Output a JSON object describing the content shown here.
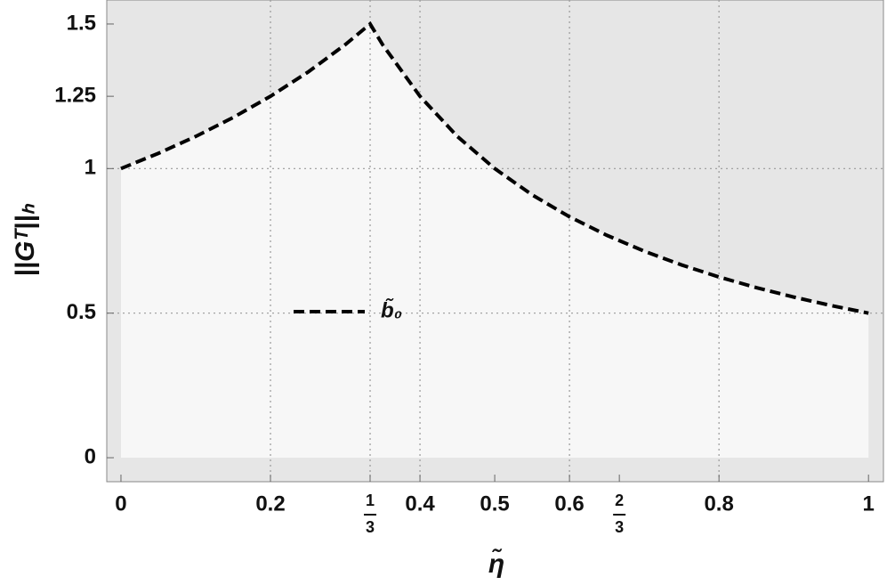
{
  "chart_data": {
    "type": "line",
    "x_label": "η̃",
    "y_label": "||Gᵀ||ₕ",
    "x": [
      0,
      0.05,
      0.1,
      0.15,
      0.2,
      0.25,
      0.3,
      0.3333,
      0.35,
      0.4,
      0.45,
      0.5,
      0.55,
      0.6,
      0.65,
      0.7,
      0.75,
      0.8,
      0.85,
      0.9,
      0.95,
      1
    ],
    "series": [
      {
        "name": "b̃₀",
        "color": "#000000",
        "values": [
          1,
          1.0526,
          1.1111,
          1.1765,
          1.25,
          1.3333,
          1.4286,
          1.5,
          1.4286,
          1.25,
          1.1111,
          1,
          0.9091,
          0.8333,
          0.7692,
          0.7143,
          0.6667,
          0.625,
          0.5882,
          0.5556,
          0.5263,
          0.5
        ]
      }
    ],
    "xlim": [
      -0.019,
      1.02
    ],
    "ylim": [
      -0.083,
      1.583
    ],
    "xticks": [
      0,
      0.2,
      {
        "value": 0.3333,
        "label": "1/3"
      },
      0.4,
      0.5,
      0.6,
      {
        "value": 0.6667,
        "label": "2/3"
      },
      0.8,
      1
    ],
    "yticks": [
      0,
      0.5,
      1,
      1.25,
      1.5
    ],
    "xgrid": [
      0.2,
      0.3333,
      0.4,
      0.6,
      0.8
    ],
    "ygrid": [
      0.5,
      1
    ],
    "line_style": "dashed"
  }
}
